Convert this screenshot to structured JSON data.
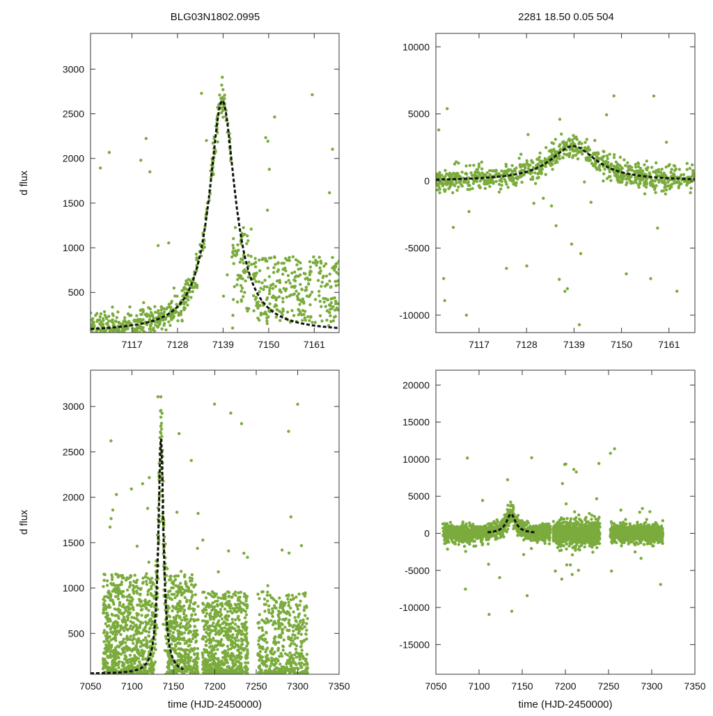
{
  "header": {
    "left_title": "BLG03N1802.0995",
    "right_title": "2281   18.50   0.05   504"
  },
  "colors": {
    "points": "#7aab3c",
    "model": "#111111"
  },
  "chart_data": [
    {
      "id": "tl",
      "type": "scatter",
      "xlim": [
        7107,
        7167
      ],
      "ylim": [
        50,
        3400
      ],
      "xticks": [
        7117,
        7128,
        7139,
        7150,
        7161
      ],
      "yticks": [
        500,
        1000,
        1500,
        2000,
        2500,
        3000
      ],
      "ylabel": "d flux",
      "xlabel": "",
      "model": {
        "t0": 7138.8,
        "baseline": 55,
        "amp": 2590,
        "width": 3.8
      },
      "seed": 11
    },
    {
      "id": "tr",
      "type": "scatter",
      "xlim": [
        7107,
        7167
      ],
      "ylim": [
        -11300,
        11000
      ],
      "xticks": [
        7117,
        7128,
        7139,
        7150,
        7161
      ],
      "yticks": [
        -10000,
        -5000,
        0,
        5000,
        10000
      ],
      "ylabel": "",
      "xlabel": "",
      "model": {
        "t0": 7138.8,
        "baseline": 0,
        "amp": 2600,
        "width": 6.5
      },
      "seed": 23
    },
    {
      "id": "bl",
      "type": "scatter",
      "xlim": [
        7050,
        7350
      ],
      "ylim": [
        50,
        3400
      ],
      "xticks": [
        7050,
        7100,
        7150,
        7200,
        7250,
        7300,
        7350
      ],
      "yticks": [
        500,
        1000,
        1500,
        2000,
        2500,
        3000
      ],
      "ylabel": "d flux",
      "xlabel": "time (HJD-2450000)",
      "model": {
        "t0": 7135,
        "baseline": 55,
        "amp": 2590,
        "width": 3.8
      },
      "seed": 37
    },
    {
      "id": "br",
      "type": "scatter",
      "xlim": [
        7050,
        7350
      ],
      "ylim": [
        -19000,
        22000
      ],
      "xticks": [
        7050,
        7100,
        7150,
        7200,
        7250,
        7300,
        7350
      ],
      "yticks": [
        -15000,
        -10000,
        -5000,
        0,
        5000,
        10000,
        15000,
        20000
      ],
      "ylabel": "",
      "xlabel": "time (HJD-2450000)",
      "model": {
        "t0": 7137,
        "baseline": 0,
        "amp": 2600,
        "width": 6.5
      },
      "seed": 53
    }
  ]
}
